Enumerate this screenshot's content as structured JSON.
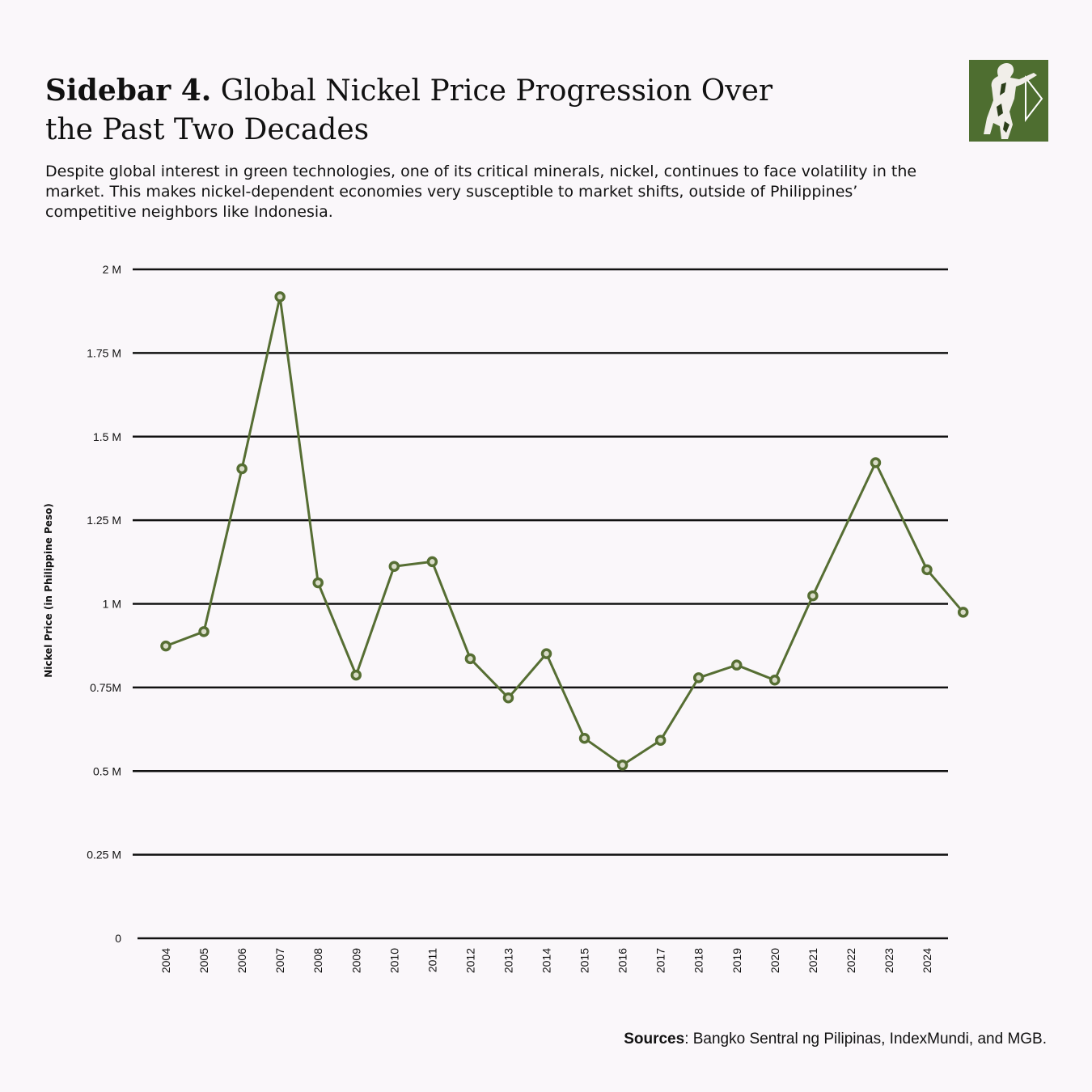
{
  "header": {
    "title_lead": "Sidebar 4.",
    "title_rest": "Global Nickel Price Progression Over the Past Two Decades",
    "description": "Despite global interest in green technologies, one of its critical minerals, nickel, continues to face volatility in the market. This makes nickel-dependent economies very susceptible to market shifts, outside of Philippines’ competitive neighbors like Indonesia."
  },
  "footer": {
    "sources_label": "Sources",
    "sources_text": ": Bangko Sentral ng Pilipinas, IndexMundi, and MGB."
  },
  "colors": {
    "line": "#566e33",
    "grid": "#111111",
    "logo_bg": "#4e6e30",
    "background": "#faf7fa"
  },
  "chart_data": {
    "type": "line",
    "title": "",
    "xlabel": "",
    "ylabel": "Nickel Price (in Philippine Peso)",
    "ylim": [
      0,
      2000000
    ],
    "grid": true,
    "yticks": [
      {
        "value": 0,
        "label": "0"
      },
      {
        "value": 250000,
        "label": "0.25 M"
      },
      {
        "value": 500000,
        "label": "0.5 M"
      },
      {
        "value": 750000,
        "label": "0.75M"
      },
      {
        "value": 1000000,
        "label": "1 M"
      },
      {
        "value": 1250000,
        "label": "1.25 M"
      },
      {
        "value": 1500000,
        "label": "1.5 M"
      },
      {
        "value": 1750000,
        "label": "1.75 M"
      },
      {
        "value": 2000000,
        "label": "2 M"
      }
    ],
    "categories": [
      "2004",
      "2005",
      "2006",
      "2007",
      "2008",
      "2009",
      "2010",
      "2011",
      "2012",
      "2013",
      "2014",
      "2015",
      "2016",
      "2017",
      "2018",
      "2019",
      "2020",
      "2021",
      "2022",
      "2023",
      "2024"
    ],
    "series": [
      {
        "name": "",
        "points": [
          {
            "x": 2004,
            "y": 874000
          },
          {
            "x": 2005,
            "y": 917000
          },
          {
            "x": 2006,
            "y": 1404000
          },
          {
            "x": 2007,
            "y": 1918000
          },
          {
            "x": 2008,
            "y": 1063000
          },
          {
            "x": 2009,
            "y": 787000
          },
          {
            "x": 2010,
            "y": 1112000
          },
          {
            "x": 2011,
            "y": 1126000
          },
          {
            "x": 2012,
            "y": 836000
          },
          {
            "x": 2013,
            "y": 719000
          },
          {
            "x": 2014,
            "y": 851000
          },
          {
            "x": 2015,
            "y": 598000
          },
          {
            "x": 2016,
            "y": 518000
          },
          {
            "x": 2017,
            "y": 592000
          },
          {
            "x": 2018,
            "y": 779000
          },
          {
            "x": 2019,
            "y": 817000
          },
          {
            "x": 2020,
            "y": 772000
          },
          {
            "x": 2021,
            "y": 1024000
          },
          {
            "x": 2022.65,
            "y": 1422000
          },
          {
            "x": 2024,
            "y": 1102000
          },
          {
            "x": 2024.95,
            "y": 975000
          }
        ]
      }
    ]
  }
}
